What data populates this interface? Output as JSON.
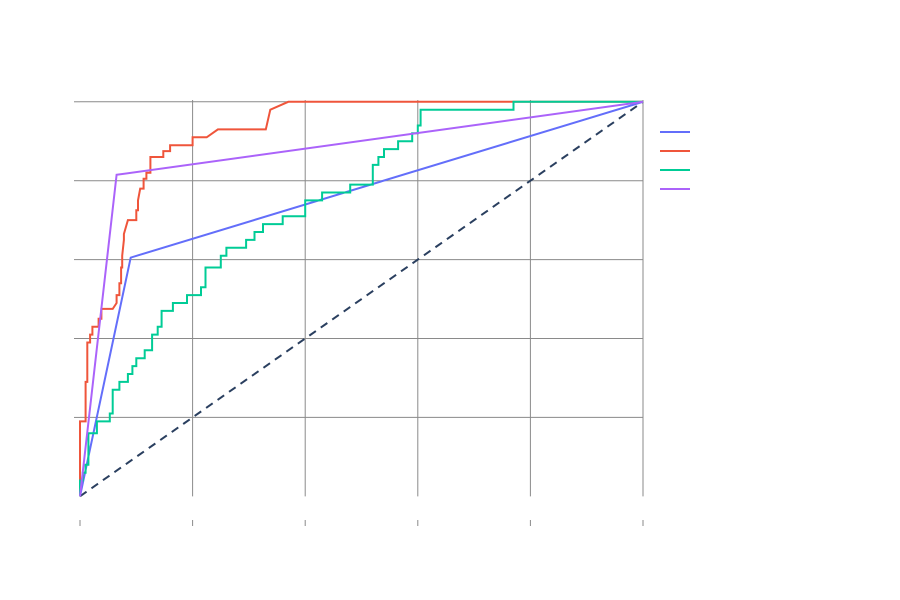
{
  "chart_data": {
    "type": "line",
    "title": "",
    "xlabel": "",
    "ylabel": "",
    "xlim": [
      0,
      1
    ],
    "ylim": [
      -0.06,
      1.04
    ],
    "x_ticks": [
      0,
      0.2,
      0.4,
      0.6,
      0.8,
      1.0
    ],
    "y_ticks": [
      0.2,
      0.4,
      0.6,
      0.8,
      1.0
    ],
    "x_tick_labels": [
      "",
      "",
      "",
      "",
      "",
      ""
    ],
    "y_tick_labels": [
      "",
      "",
      "",
      "",
      ""
    ],
    "grid": true,
    "legend": {
      "placement": "top-right",
      "entries": [
        "",
        "",
        "",
        ""
      ]
    },
    "colors": {
      "series_1": "#636efa",
      "series_2": "#ef553b",
      "series_3": "#00cc96",
      "series_4": "#ab63fa",
      "diagonal": "#2a3f5f"
    },
    "series": [
      {
        "color": "#636efa",
        "points": [
          [
            0,
            0
          ],
          [
            0.09,
            0.605
          ],
          [
            1,
            1
          ]
        ]
      },
      {
        "color": "#ef553b",
        "points": [
          [
            0,
            0
          ],
          [
            0,
            0.19
          ],
          [
            0.01,
            0.19
          ],
          [
            0.01,
            0.29
          ],
          [
            0.013,
            0.29
          ],
          [
            0.013,
            0.39
          ],
          [
            0.018,
            0.39
          ],
          [
            0.018,
            0.41
          ],
          [
            0.022,
            0.41
          ],
          [
            0.022,
            0.43
          ],
          [
            0.033,
            0.43
          ],
          [
            0.033,
            0.45
          ],
          [
            0.038,
            0.45
          ],
          [
            0.038,
            0.475
          ],
          [
            0.058,
            0.475
          ],
          [
            0.065,
            0.49
          ],
          [
            0.065,
            0.51
          ],
          [
            0.07,
            0.51
          ],
          [
            0.07,
            0.54
          ],
          [
            0.073,
            0.54
          ],
          [
            0.073,
            0.58
          ],
          [
            0.075,
            0.58
          ],
          [
            0.075,
            0.61
          ],
          [
            0.078,
            0.65
          ],
          [
            0.078,
            0.665
          ],
          [
            0.085,
            0.7
          ],
          [
            0.1,
            0.7
          ],
          [
            0.1,
            0.725
          ],
          [
            0.103,
            0.725
          ],
          [
            0.103,
            0.75
          ],
          [
            0.107,
            0.78
          ],
          [
            0.113,
            0.78
          ],
          [
            0.113,
            0.805
          ],
          [
            0.118,
            0.805
          ],
          [
            0.118,
            0.82
          ],
          [
            0.125,
            0.82
          ],
          [
            0.125,
            0.86
          ],
          [
            0.148,
            0.86
          ],
          [
            0.148,
            0.875
          ],
          [
            0.16,
            0.875
          ],
          [
            0.16,
            0.89
          ],
          [
            0.2,
            0.89
          ],
          [
            0.2,
            0.91
          ],
          [
            0.225,
            0.91
          ],
          [
            0.245,
            0.93
          ],
          [
            0.33,
            0.93
          ],
          [
            0.338,
            0.98
          ],
          [
            0.37,
            1
          ],
          [
            1,
            1
          ]
        ]
      },
      {
        "color": "#00cc96",
        "points": [
          [
            0,
            0
          ],
          [
            0,
            0.04
          ],
          [
            0.005,
            0.04
          ],
          [
            0.005,
            0.06
          ],
          [
            0.01,
            0.06
          ],
          [
            0.01,
            0.08
          ],
          [
            0.015,
            0.08
          ],
          [
            0.015,
            0.16
          ],
          [
            0.03,
            0.16
          ],
          [
            0.03,
            0.19
          ],
          [
            0.053,
            0.19
          ],
          [
            0.053,
            0.21
          ],
          [
            0.058,
            0.21
          ],
          [
            0.058,
            0.27
          ],
          [
            0.07,
            0.27
          ],
          [
            0.07,
            0.29
          ],
          [
            0.085,
            0.29
          ],
          [
            0.085,
            0.31
          ],
          [
            0.093,
            0.31
          ],
          [
            0.093,
            0.33
          ],
          [
            0.1,
            0.33
          ],
          [
            0.1,
            0.35
          ],
          [
            0.115,
            0.35
          ],
          [
            0.115,
            0.37
          ],
          [
            0.128,
            0.37
          ],
          [
            0.128,
            0.41
          ],
          [
            0.138,
            0.41
          ],
          [
            0.138,
            0.43
          ],
          [
            0.145,
            0.43
          ],
          [
            0.145,
            0.47
          ],
          [
            0.165,
            0.47
          ],
          [
            0.165,
            0.49
          ],
          [
            0.19,
            0.49
          ],
          [
            0.19,
            0.51
          ],
          [
            0.215,
            0.51
          ],
          [
            0.215,
            0.53
          ],
          [
            0.223,
            0.53
          ],
          [
            0.223,
            0.58
          ],
          [
            0.25,
            0.58
          ],
          [
            0.25,
            0.61
          ],
          [
            0.26,
            0.61
          ],
          [
            0.26,
            0.63
          ],
          [
            0.295,
            0.63
          ],
          [
            0.295,
            0.65
          ],
          [
            0.31,
            0.65
          ],
          [
            0.31,
            0.67
          ],
          [
            0.325,
            0.67
          ],
          [
            0.325,
            0.69
          ],
          [
            0.36,
            0.69
          ],
          [
            0.36,
            0.71
          ],
          [
            0.4,
            0.71
          ],
          [
            0.4,
            0.75
          ],
          [
            0.43,
            0.75
          ],
          [
            0.43,
            0.77
          ],
          [
            0.48,
            0.77
          ],
          [
            0.48,
            0.79
          ],
          [
            0.52,
            0.79
          ],
          [
            0.52,
            0.84
          ],
          [
            0.53,
            0.84
          ],
          [
            0.53,
            0.86
          ],
          [
            0.54,
            0.86
          ],
          [
            0.54,
            0.88
          ],
          [
            0.565,
            0.88
          ],
          [
            0.565,
            0.9
          ],
          [
            0.59,
            0.9
          ],
          [
            0.59,
            0.92
          ],
          [
            0.6,
            0.92
          ],
          [
            0.6,
            0.94
          ],
          [
            0.605,
            0.94
          ],
          [
            0.605,
            0.98
          ],
          [
            0.77,
            0.98
          ],
          [
            0.77,
            1
          ],
          [
            1,
            1
          ]
        ]
      },
      {
        "color": "#ab63fa",
        "points": [
          [
            0,
            0
          ],
          [
            0.065,
            0.815
          ],
          [
            1,
            1
          ]
        ]
      }
    ],
    "diagonal": {
      "points": [
        [
          0,
          0
        ],
        [
          1,
          1
        ]
      ],
      "style": "dashed"
    }
  }
}
